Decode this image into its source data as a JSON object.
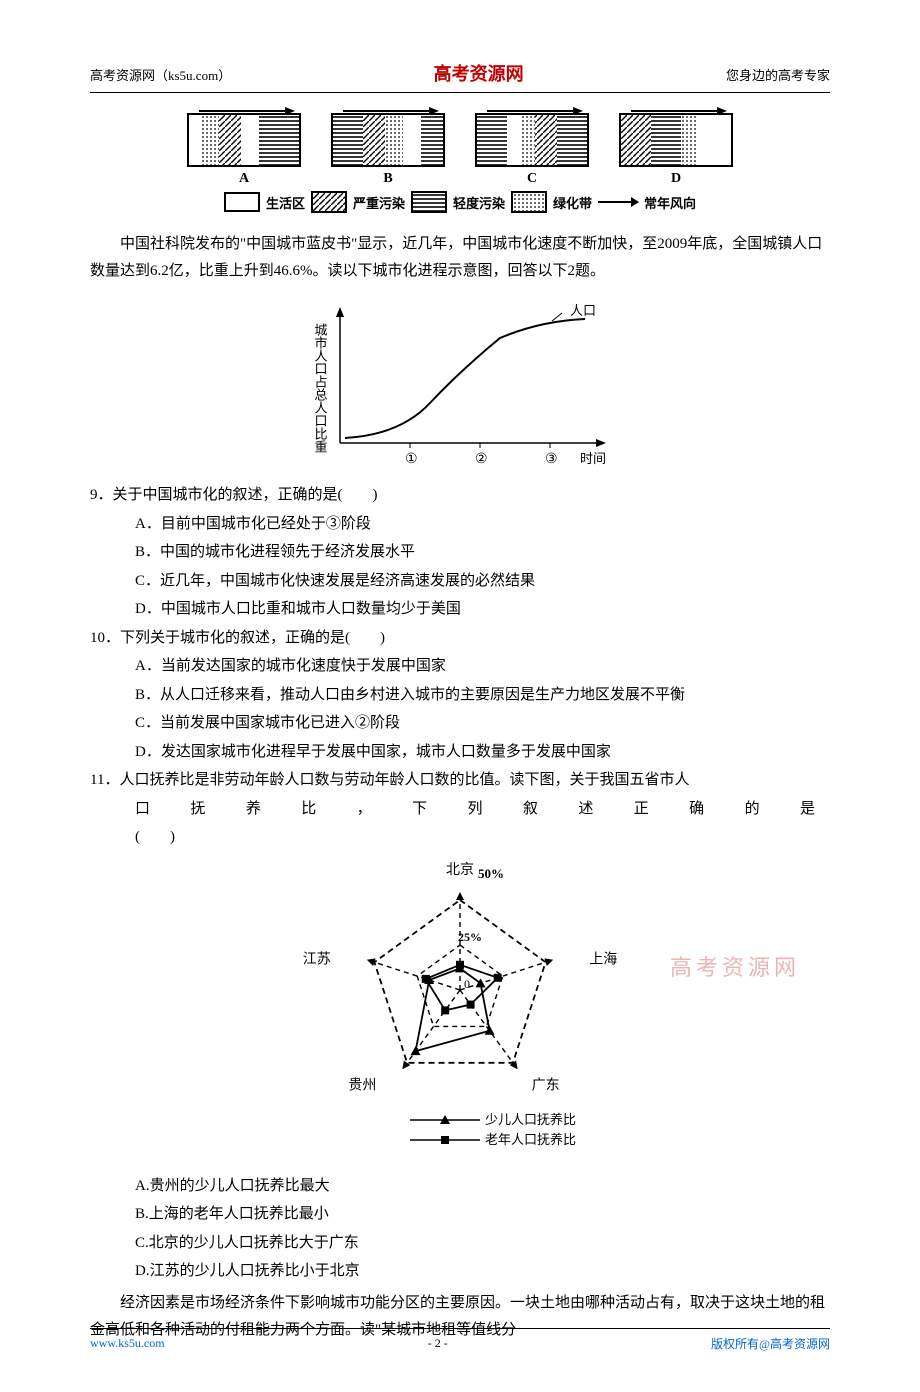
{
  "header": {
    "left": "高考资源网（ks5u.com）",
    "center": "高考资源网",
    "right": "您身边的高考专家"
  },
  "diagram_row": {
    "labels": [
      "A",
      "B",
      "C",
      "D"
    ],
    "colors": {
      "border": "#000000",
      "diag_stroke": "#000000",
      "horiz_stroke": "#000000",
      "dot_fill": "#000000",
      "bg": "#ffffff"
    },
    "legend": {
      "living": "生活区",
      "heavy": "严重污染",
      "light": "轻度污染",
      "green": "绿化带",
      "wind": "常年风向"
    }
  },
  "intro_para": "中国社科院发布的\"中国城市蓝皮书\"显示，近几年，中国城市化速度不断加快，至2009年底，全国城镇人口数量达到6.2亿，比重上升到46.6%。读以下城市化进程示意图，回答以下2题。",
  "s_curve": {
    "y_label": "城市人口占总人口比重",
    "top_label": "人口",
    "x_ticks": [
      "①",
      "②",
      "③"
    ],
    "x_label_end": "时间",
    "stroke": "#000000"
  },
  "q9": {
    "stem": "9．关于中国城市化的叙述，正确的是(　　)",
    "A": "A．目前中国城市化已经处于③阶段",
    "B": "B．中国的城市化进程领先于经济发展水平",
    "C": "C．近几年，中国城市化快速发展是经济高速发展的必然结果",
    "D": "D．中国城市人口比重和城市人口数量均少于美国"
  },
  "q10": {
    "stem": "10．下列关于城市化的叙述，正确的是(　　)",
    "A": "A．当前发达国家的城市化速度快于发展中国家",
    "B": "B．从人口迁移来看，推动人口由乡村进入城市的主要原因是生产力地区发展不平衡",
    "C": "C．当前发展中国家城市化已进入②阶段",
    "D": "D．发达国家城市化进程早于发展中国家，城市人口数量多于发展中国家"
  },
  "q11": {
    "stem": "11．人口抚养比是非劳动年龄人口数与劳动年龄人口数的比值。读下图，关于我国五省市人",
    "stem2": "口 抚 养 比 ， 下 列 叙 述 正 确 的 是",
    "stem3": "(　　)",
    "A": "A.贵州的少儿人口抚养比最大",
    "B": "B.上海的老年人口抚养比最小",
    "C": "C.北京的少儿人口抚养比大于广东",
    "D": "D.江苏的少儿人口抚养比小于北京"
  },
  "radar": {
    "axes": [
      "北京",
      "上海",
      "广东",
      "贵州",
      "江苏"
    ],
    "center_pct": "50%",
    "inner_pct": "25%",
    "zero": "0",
    "series": [
      {
        "name": "少儿人口抚养比",
        "marker": "triangle",
        "values": [
          12,
          12,
          28,
          42,
          18
        ]
      },
      {
        "name": "老年人口抚养比",
        "marker": "square",
        "values": [
          14,
          22,
          10,
          14,
          20
        ]
      }
    ],
    "legend": {
      "child": "少儿人口抚养比",
      "elder": "老年人口抚养比"
    },
    "colors": {
      "stroke": "#000000",
      "bg": "#ffffff"
    },
    "watermark": "高考资源网"
  },
  "trailing_para": "经济因素是市场经济条件下影响城市功能分区的主要原因。一块土地由哪种活动占有，取决于这块土地的租金高低和各种活动的付租能力两个方面。读\"某城市地租等值线分",
  "footer": {
    "left": "www.ks5u.com",
    "center": "- 2 -",
    "right": "版权所有@高考资源网"
  }
}
